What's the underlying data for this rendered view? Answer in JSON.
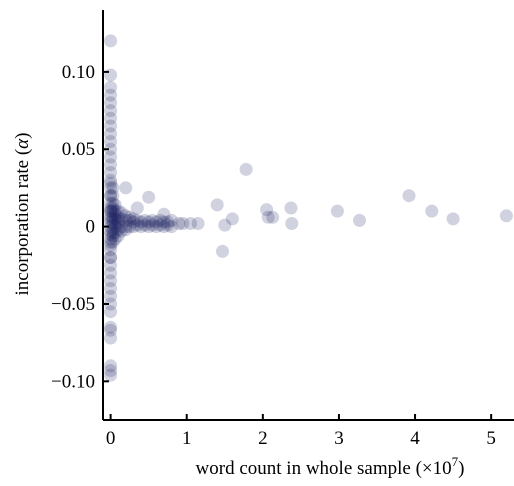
{
  "chart_data": {
    "type": "scatter",
    "xlabel": "word count in whole sample (×10",
    "xlabel_sup": "7",
    "xlabel_suffix": ")",
    "ylabel": "incorporation rate (",
    "ylabel_symbol": "α",
    "ylabel_suffix": ")",
    "xlim": [
      -0.1,
      5.3
    ],
    "ylim": [
      -0.125,
      0.14
    ],
    "x_ticks": [
      0,
      1,
      2,
      3,
      4,
      5
    ],
    "x_tick_labels": [
      "0",
      "1",
      "2",
      "3",
      "4",
      "5"
    ],
    "y_ticks": [
      0.1,
      0.05,
      0,
      -0.05,
      -0.1
    ],
    "y_tick_labels": [
      "0.10",
      "0.05",
      "0",
      "−0.05",
      "−0.10"
    ],
    "grid": false,
    "marker_color": "#1a1f5e",
    "marker_opacity": 0.2,
    "series": [
      {
        "x": [
          0.0,
          0.0,
          0.0,
          0.0,
          0.0,
          0.0,
          0.0,
          0.0,
          0.0,
          0.0,
          0.0,
          0.0,
          0.0,
          0.0,
          0.0,
          0.0,
          0.0,
          0.0,
          0.0,
          0.0,
          0.0,
          0.0,
          0.0,
          0.0,
          0.0,
          0.0,
          0.0,
          0.0,
          0.0,
          0.0,
          0.0,
          0.0,
          0.0,
          0.0,
          0.0,
          0.0,
          0.0,
          0.0,
          0.0,
          0.0,
          0.0,
          0.0,
          0.0,
          0.0,
          0.0,
          0.0,
          0.0,
          0.0,
          0.03,
          0.03,
          0.03,
          0.03,
          0.03,
          0.03,
          0.03,
          0.03,
          0.03,
          0.03,
          0.03,
          0.03,
          0.06,
          0.06,
          0.06,
          0.06,
          0.06,
          0.06,
          0.06,
          0.06,
          0.1,
          0.1,
          0.1,
          0.1,
          0.1,
          0.1,
          0.14,
          0.14,
          0.14,
          0.14,
          0.2,
          0.2,
          0.2,
          0.2,
          0.25,
          0.25,
          0.25,
          0.3,
          0.3,
          0.3,
          0.35,
          0.35,
          0.4,
          0.4,
          0.45,
          0.45,
          0.5,
          0.5,
          0.55,
          0.55,
          0.6,
          0.6,
          0.65,
          0.65,
          0.7,
          0.7,
          0.75,
          0.75,
          0.8,
          0.8,
          0.9,
          0.95,
          1.05,
          1.15,
          0.2,
          0.5,
          0.35,
          0.7,
          1.4,
          1.47,
          1.5,
          1.6,
          1.78,
          2.05,
          2.07,
          2.13,
          2.37,
          2.38,
          2.98,
          3.27,
          3.92,
          4.22,
          4.5,
          5.2
        ],
        "y": [
          0.12,
          0.098,
          0.09,
          0.085,
          0.08,
          0.075,
          0.07,
          0.065,
          0.06,
          0.055,
          0.05,
          0.045,
          0.04,
          0.035,
          0.03,
          0.025,
          0.02,
          0.015,
          0.01,
          0.005,
          0.0,
          -0.005,
          -0.01,
          -0.015,
          -0.02,
          -0.025,
          -0.03,
          -0.035,
          -0.04,
          -0.045,
          -0.05,
          -0.055,
          -0.065,
          -0.067,
          -0.072,
          -0.09,
          -0.093,
          -0.096,
          0.02,
          0.012,
          0.007,
          0.003,
          -0.003,
          -0.008,
          0.01,
          -0.012,
          0.028,
          -0.02,
          0.015,
          0.01,
          0.006,
          0.002,
          -0.002,
          -0.006,
          0.02,
          -0.01,
          0.012,
          0.004,
          -0.004,
          0.025,
          0.01,
          0.005,
          0.0,
          -0.004,
          0.008,
          -0.008,
          0.014,
          0.002,
          0.006,
          0.002,
          -0.002,
          0.01,
          -0.006,
          0.004,
          0.005,
          0.0,
          0.009,
          -0.003,
          0.004,
          0.0,
          0.007,
          -0.002,
          0.004,
          0.0,
          0.006,
          0.003,
          0.0,
          0.005,
          0.004,
          0.001,
          0.003,
          0.0,
          0.004,
          0.001,
          0.003,
          0.0,
          0.004,
          0.001,
          0.003,
          0.0,
          0.004,
          0.001,
          0.003,
          0.0,
          0.003,
          0.001,
          0.004,
          0.0,
          0.002,
          0.002,
          0.002,
          0.002,
          0.025,
          0.019,
          0.012,
          0.008,
          0.014,
          -0.016,
          0.001,
          0.005,
          0.037,
          0.011,
          0.006,
          0.006,
          0.012,
          0.002,
          0.01,
          0.004,
          0.02,
          0.01,
          0.005,
          0.007
        ]
      }
    ]
  }
}
